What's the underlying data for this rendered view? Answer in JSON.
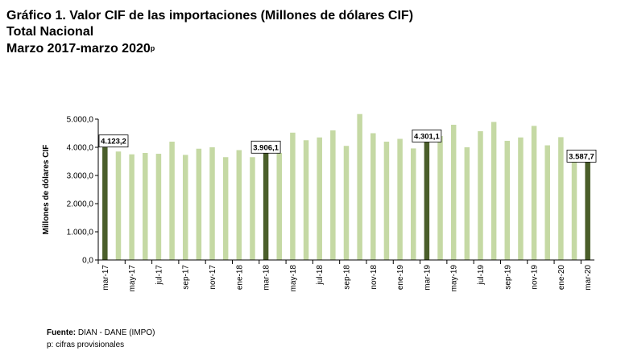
{
  "header": {
    "title": "Gráfico 1. Valor CIF de las importaciones (Millones de dólares CIF)",
    "subtitle": "Total Nacional",
    "period": "Marzo 2017-marzo 2020",
    "period_suffix": "p"
  },
  "footer": {
    "source_label": "Fuente:",
    "source_text": "DIAN - DANE (IMPO)",
    "note": "p: cifras provisionales"
  },
  "colors": {
    "bar": "#c5d9a4",
    "highlight": "#4a5e2a",
    "axis": "#000000"
  },
  "chart_data": {
    "type": "bar",
    "title": "",
    "ylabel": "Millones de dólares CIF",
    "ylim": [
      0,
      5000
    ],
    "yticks": [
      "0,0",
      "1.000,0",
      "2.000,0",
      "3.000,0",
      "4.000,0",
      "5.000,0"
    ],
    "categories": [
      "mar-17",
      "abr-17",
      "may-17",
      "jun-17",
      "jul-17",
      "ago-17",
      "sep-17",
      "oct-17",
      "nov-17",
      "dic-17",
      "ene-18",
      "feb-18",
      "mar-18",
      "abr-18",
      "may-18",
      "jun-18",
      "jul-18",
      "ago-18",
      "sep-18",
      "oct-18",
      "nov-18",
      "dic-18",
      "ene-19",
      "feb-19",
      "mar-19",
      "abr-19",
      "may-19",
      "jun-19",
      "jul-19",
      "ago-19",
      "sep-19",
      "oct-19",
      "nov-19",
      "dic-19",
      "ene-20",
      "feb-20",
      "mar-20"
    ],
    "tick_labels": [
      "mar-17",
      "",
      "may-17",
      "",
      "jul-17",
      "",
      "sep-17",
      "",
      "nov-17",
      "",
      "ene-18",
      "",
      "mar-18",
      "",
      "may-18",
      "",
      "jul-18",
      "",
      "sep-18",
      "",
      "nov-18",
      "",
      "ene-19",
      "",
      "mar-19",
      "",
      "may-19",
      "",
      "jul-19",
      "",
      "sep-19",
      "",
      "nov-19",
      "",
      "ene-20",
      "",
      "mar-20"
    ],
    "values": [
      4123.2,
      3850,
      3750,
      3800,
      3770,
      4200,
      3730,
      3950,
      4000,
      3650,
      3900,
      3650,
      3906.1,
      3800,
      4520,
      4250,
      4350,
      4600,
      4050,
      5180,
      4500,
      4200,
      4300,
      3960,
      4301.1,
      4400,
      4800,
      4000,
      4570,
      4900,
      4230,
      4350,
      4760,
      4070,
      4360,
      3600,
      3587.7
    ],
    "highlight_indices": [
      0,
      12,
      24,
      36
    ],
    "data_labels": [
      {
        "index": 0,
        "text": "4.123,2"
      },
      {
        "index": 12,
        "text": "3.906,1"
      },
      {
        "index": 24,
        "text": "4.301,1"
      },
      {
        "index": 36,
        "text": "3.587,7"
      }
    ]
  }
}
